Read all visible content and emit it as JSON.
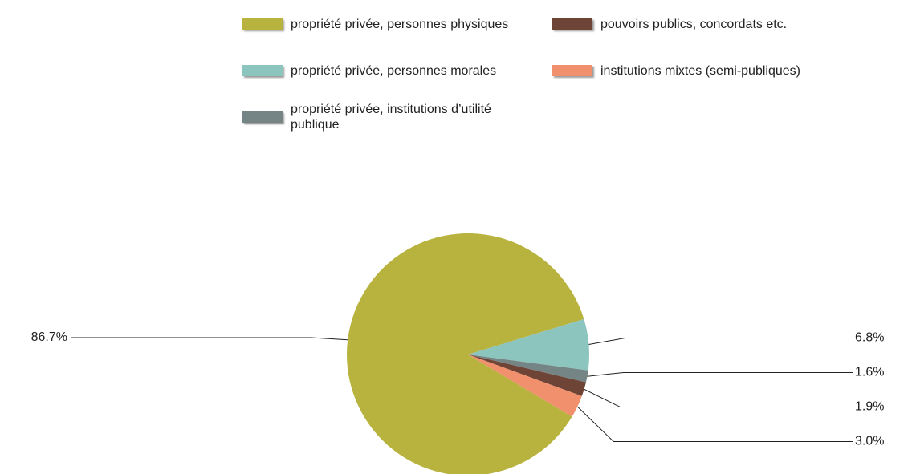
{
  "chart_data": {
    "type": "pie",
    "categories": [
      "propriété privée, personnes physiques",
      "propriété privée, personnes morales",
      "propriété privée, institutions d’utilité publique",
      "pouvoirs publics, concordats etc.",
      "institutions mixtes (semi-publiques)"
    ],
    "values": [
      86.7,
      6.8,
      1.6,
      1.9,
      3.0
    ],
    "value_labels": [
      "86.7%",
      "6.8%",
      "1.6%",
      "1.9%",
      "3.0%"
    ],
    "colors": [
      "#b8b33e",
      "#8cc5bd",
      "#758585",
      "#6e4436",
      "#f0906c"
    ]
  }
}
